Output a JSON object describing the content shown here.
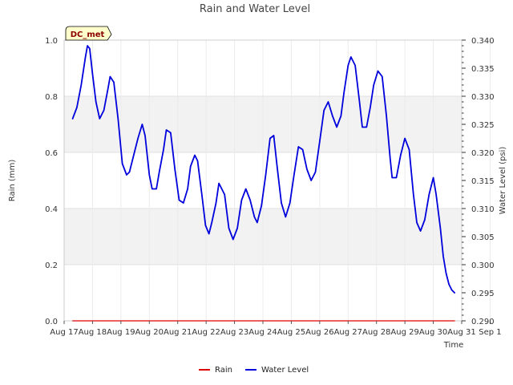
{
  "chart_data": {
    "type": "line",
    "title": "Rain and Water Level",
    "xlabel": "Time",
    "ylabel": "Rain (mm)",
    "y2label": "Water Level (psi)",
    "badge": "DC_met",
    "x_ticks": [
      "Aug 17",
      "Aug 18",
      "Aug 19",
      "Aug 20",
      "Aug 21",
      "Aug 22",
      "Aug 23",
      "Aug 24",
      "Aug 25",
      "Aug 26",
      "Aug 27",
      "Aug 28",
      "Aug 29",
      "Aug 30",
      "Aug 31",
      "Sep 1"
    ],
    "xlim": [
      0,
      14
    ],
    "ylim": [
      0,
      1.0
    ],
    "y_ticks": [
      "0.0",
      "0.2",
      "0.4",
      "0.6",
      "0.8",
      "1.0"
    ],
    "y2lim": [
      0.29,
      0.34
    ],
    "y2_ticks": [
      "0.290",
      "0.295",
      "0.300",
      "0.305",
      "0.310",
      "0.315",
      "0.320",
      "0.325",
      "0.330",
      "0.335",
      "0.340"
    ],
    "grid": true,
    "legend_position": "bottom-center",
    "series": [
      {
        "name": "Rain",
        "color": "#dd0000",
        "axis": "left",
        "x": [
          0.3,
          13.75
        ],
        "values": [
          0.0,
          0.0
        ]
      },
      {
        "name": "Water Level",
        "color": "#0000dd",
        "axis": "right",
        "x": [
          0.3,
          0.45,
          0.6,
          0.75,
          0.82,
          0.9,
          1.0,
          1.12,
          1.25,
          1.4,
          1.55,
          1.62,
          1.75,
          1.9,
          2.05,
          2.2,
          2.3,
          2.45,
          2.6,
          2.75,
          2.85,
          3.0,
          3.1,
          3.25,
          3.35,
          3.5,
          3.6,
          3.75,
          3.9,
          4.05,
          4.2,
          4.35,
          4.45,
          4.6,
          4.7,
          4.85,
          4.98,
          5.1,
          5.2,
          5.35,
          5.45,
          5.65,
          5.8,
          5.95,
          6.1,
          6.25,
          6.4,
          6.55,
          6.7,
          6.8,
          6.95,
          7.1,
          7.25,
          7.38,
          7.5,
          7.65,
          7.8,
          7.95,
          8.08,
          8.25,
          8.4,
          8.55,
          8.7,
          8.85,
          9.0,
          9.15,
          9.3,
          9.45,
          9.6,
          9.75,
          9.85,
          10.0,
          10.1,
          10.25,
          10.4,
          10.5,
          10.65,
          10.78,
          10.9,
          11.05,
          11.2,
          11.35,
          11.48,
          11.55,
          11.7,
          11.85,
          12.0,
          12.15,
          12.3,
          12.42,
          12.55,
          12.7,
          12.85,
          13.0,
          13.1,
          13.25,
          13.35,
          13.45,
          13.55,
          13.65,
          13.75
        ],
        "values": [
          0.326,
          0.328,
          0.332,
          0.337,
          0.339,
          0.3385,
          0.334,
          0.329,
          0.326,
          0.3275,
          0.3315,
          0.3335,
          0.3325,
          0.326,
          0.318,
          0.316,
          0.3165,
          0.3195,
          0.3225,
          0.325,
          0.323,
          0.316,
          0.3135,
          0.3135,
          0.3165,
          0.3205,
          0.324,
          0.3235,
          0.317,
          0.3115,
          0.311,
          0.3135,
          0.3175,
          0.3195,
          0.3185,
          0.3125,
          0.307,
          0.3055,
          0.3075,
          0.311,
          0.3145,
          0.3125,
          0.3065,
          0.3045,
          0.3065,
          0.3115,
          0.3135,
          0.3115,
          0.3085,
          0.3075,
          0.3105,
          0.316,
          0.3225,
          0.323,
          0.3175,
          0.311,
          0.3085,
          0.311,
          0.3155,
          0.321,
          0.3205,
          0.317,
          0.315,
          0.3165,
          0.322,
          0.3275,
          0.329,
          0.3265,
          0.3245,
          0.3265,
          0.3305,
          0.3355,
          0.337,
          0.3355,
          0.329,
          0.3245,
          0.3245,
          0.328,
          0.332,
          0.3345,
          0.3335,
          0.3265,
          0.319,
          0.3155,
          0.3155,
          0.3195,
          0.3225,
          0.3205,
          0.3125,
          0.3075,
          0.306,
          0.308,
          0.3125,
          0.3155,
          0.3125,
          0.3065,
          0.3015,
          0.2985,
          0.2965,
          0.2955,
          0.295
        ]
      }
    ]
  }
}
